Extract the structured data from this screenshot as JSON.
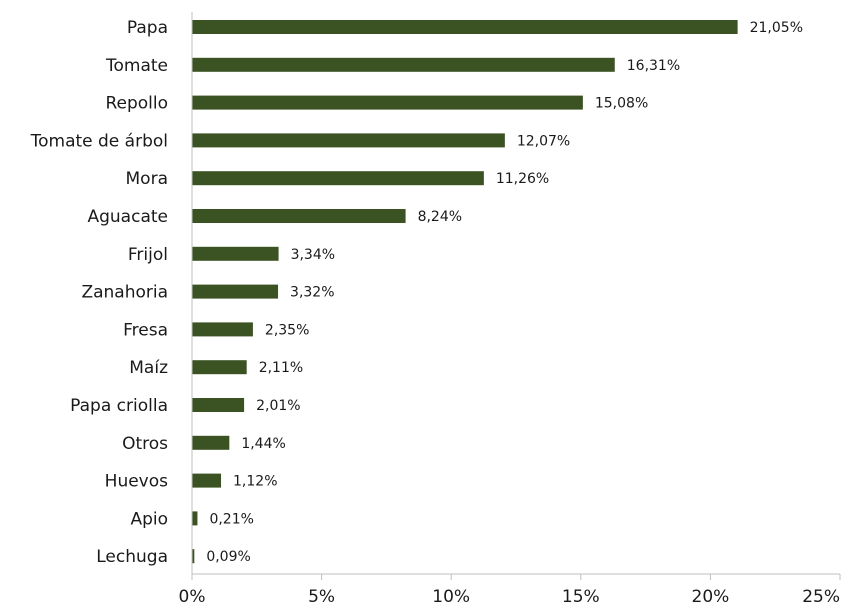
{
  "chart_data": {
    "type": "bar",
    "orientation": "horizontal",
    "categories": [
      "Papa",
      "Tomate",
      "Repollo",
      "Tomate de árbol",
      "Mora",
      "Aguacate",
      "Frijol",
      "Zanahoria",
      "Fresa",
      "Maíz",
      "Papa criolla",
      "Otros",
      "Huevos",
      "Apio",
      "Lechuga"
    ],
    "values": [
      21.05,
      16.31,
      15.08,
      12.07,
      11.26,
      8.24,
      3.34,
      3.32,
      2.35,
      2.11,
      2.01,
      1.44,
      1.12,
      0.21,
      0.09
    ],
    "value_labels": [
      "21,05%",
      "16,31%",
      "15,08%",
      "12,07%",
      "11,26%",
      "8,24%",
      "3,34%",
      "3,32%",
      "2,35%",
      "2,11%",
      "2,01%",
      "1,44%",
      "1,12%",
      "0,21%",
      "0,09%"
    ],
    "xticks": [
      "0%",
      "5%",
      "10%",
      "15%",
      "20%",
      "25%"
    ],
    "xlim": [
      0,
      25
    ],
    "grid": false,
    "bar_color": "#3b5323"
  }
}
